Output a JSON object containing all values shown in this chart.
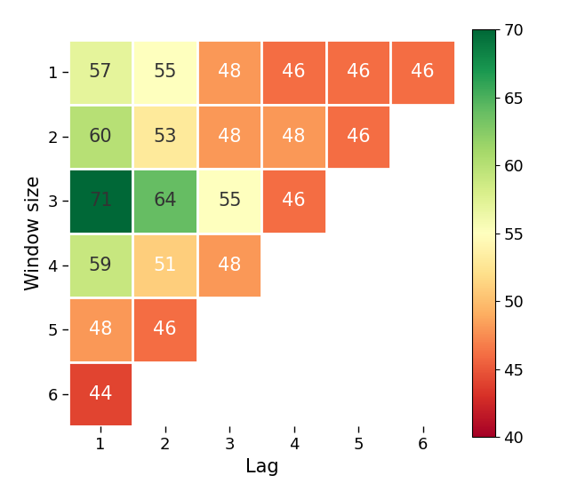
{
  "title": "",
  "xlabel": "Lag",
  "ylabel": "Window size",
  "vmin": 40,
  "vmax": 70,
  "colormap": "RdYlGn",
  "grid_data": [
    [
      57,
      55,
      48,
      46,
      46,
      46
    ],
    [
      60,
      53,
      48,
      48,
      46,
      null
    ],
    [
      71,
      64,
      55,
      46,
      null,
      null
    ],
    [
      59,
      51,
      48,
      null,
      null,
      null
    ],
    [
      48,
      46,
      null,
      null,
      null,
      null
    ],
    [
      44,
      null,
      null,
      null,
      null,
      null
    ]
  ],
  "window_labels": [
    "1",
    "2",
    "3",
    "4",
    "5",
    "6"
  ],
  "lag_labels": [
    "1",
    "2",
    "3",
    "4",
    "5",
    "6"
  ],
  "text_dark_threshold": 52,
  "font_size": 15,
  "label_fontsize": 15,
  "tick_fontsize": 13,
  "colorbar_ticks": [
    40,
    45,
    50,
    55,
    60,
    65,
    70
  ],
  "cell_edge_color": "white",
  "cell_edge_width": 2.0
}
